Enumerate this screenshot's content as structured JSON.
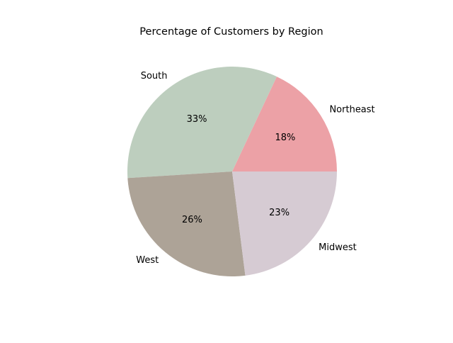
{
  "chart_data": {
    "type": "pie",
    "title": "Percentage of Customers by Region",
    "labels": [
      "Northeast",
      "South",
      "West",
      "Midwest"
    ],
    "values": [
      18,
      33,
      26,
      23
    ],
    "percent_labels": [
      "18%",
      "33%",
      "26%",
      "23%"
    ],
    "colors": [
      "#eca1a6",
      "#bdcebe",
      "#ada397",
      "#d6cbd3"
    ],
    "start_angle_deg": 0,
    "direction": "counterclockwise",
    "legend": "none"
  }
}
